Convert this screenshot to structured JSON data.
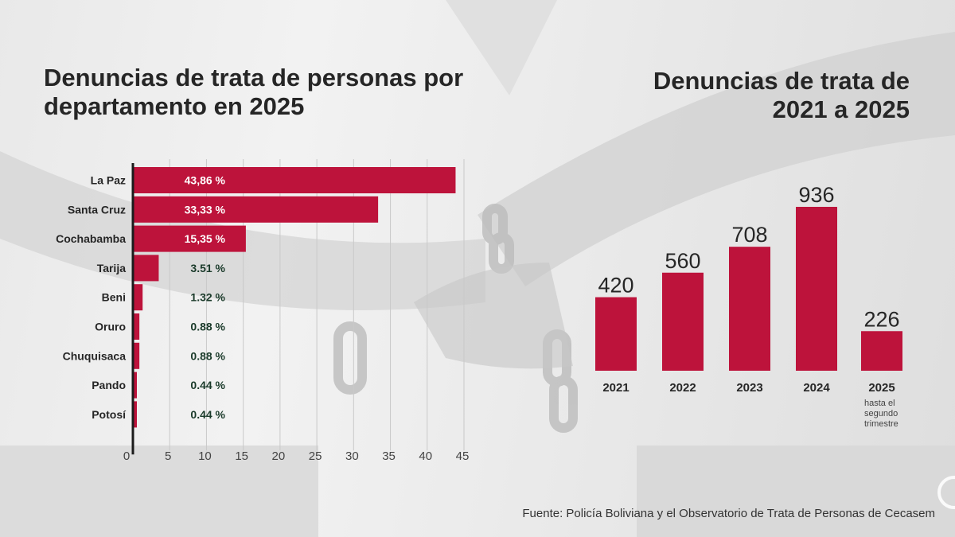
{
  "left_title": "Denuncias de trata de personas por departamento en 2025",
  "right_title_line1": "Denuncias de trata de",
  "right_title_line2": "2021 a 2025",
  "source": "Fuente: Policía Boliviana y el Observatorio de Trata de Personas de Cecasem",
  "colors": {
    "bar": "#bd133b",
    "text_dark": "#262626",
    "label_dark_green": "#1a3a2a",
    "label_white": "#ffffff"
  },
  "chart_data": [
    {
      "type": "bar",
      "orientation": "horizontal",
      "title": "Denuncias de trata de personas por departamento en 2025",
      "categories": [
        "La Paz",
        "Santa Cruz",
        "Cochabamba",
        "Tarija",
        "Beni",
        "Oruro",
        "Chuquisaca",
        "Pando",
        "Potosí"
      ],
      "values": [
        43.86,
        33.33,
        15.35,
        3.51,
        1.32,
        0.88,
        0.88,
        0.44,
        0.44
      ],
      "data_labels": [
        "43,86 %",
        "33,33 %",
        "15,35 %",
        "3.51 %",
        "1.32 %",
        "0.88 %",
        "0.88 %",
        "0.44 %",
        "0.44 %"
      ],
      "xlim": [
        0,
        45
      ],
      "xticks": [
        0,
        5,
        10,
        15,
        20,
        25,
        30,
        35,
        40,
        45
      ],
      "xlabel": "",
      "ylabel": "",
      "grid": true
    },
    {
      "type": "bar",
      "orientation": "vertical",
      "title": "Denuncias de trata de 2021 a 2025",
      "categories": [
        "2021",
        "2022",
        "2023",
        "2024",
        "2025"
      ],
      "category_notes": [
        "",
        "",
        "",
        "",
        "hasta el segundo trimestre"
      ],
      "values": [
        420,
        560,
        708,
        936,
        226
      ],
      "data_labels": [
        "420",
        "560",
        "708",
        "936",
        "226"
      ],
      "ylim": [
        0,
        936
      ],
      "grid": false
    }
  ]
}
